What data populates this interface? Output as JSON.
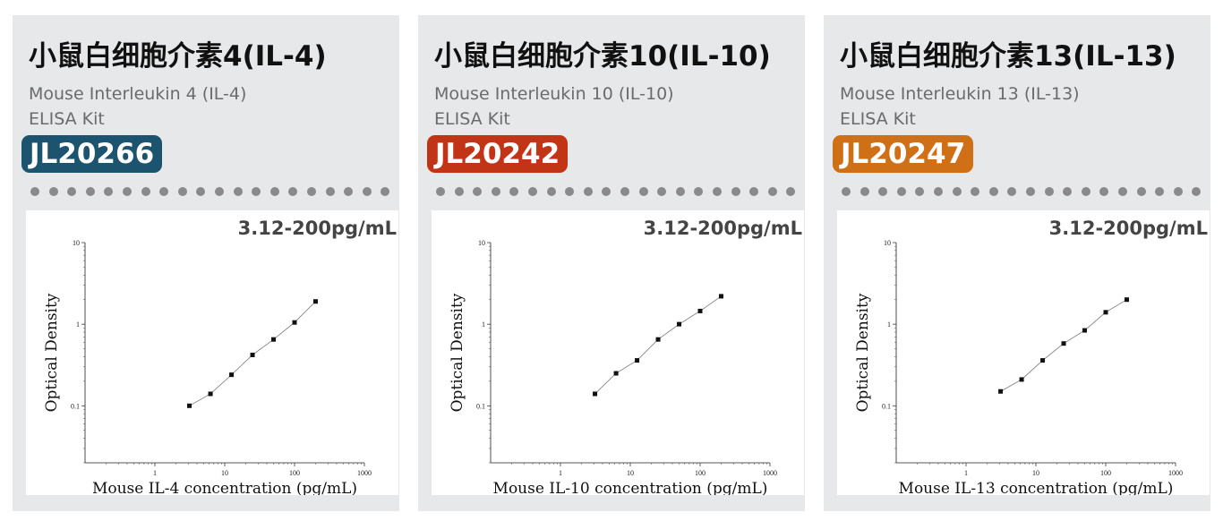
{
  "cards": [
    {
      "title": "小鼠白细胞介素4(IL-4)",
      "subtitle_line1": "Mouse Interleukin 4 (IL-4)",
      "subtitle_line2": "ELISA Kit",
      "code": "JL20266",
      "code_color": "#1c5470",
      "range": "3.12-200pg/mL"
    },
    {
      "title": "小鼠白细胞介素10(IL-10)",
      "subtitle_line1": "Mouse Interleukin 10 (IL-10)",
      "subtitle_line2": "ELISA Kit",
      "code": "JL20242",
      "code_color": "#c23416",
      "range": "3.12-200pg/mL"
    },
    {
      "title": "小鼠白细胞介素13(IL-13)",
      "subtitle_line1": "Mouse Interleukin 13 (IL-13)",
      "subtitle_line2": "ELISA Kit",
      "code": "JL20247",
      "code_color": "#cf6f16",
      "range": "3.12-200pg/mL"
    }
  ],
  "chart_data": [
    {
      "type": "scatter",
      "xlabel": "Mouse IL-4 concentration (pg/mL)",
      "ylabel": "Optical Density",
      "x_scale": "log",
      "y_scale": "log",
      "xlim": [
        0.1,
        1000
      ],
      "ylim": [
        0.02,
        10
      ],
      "x_ticks": [
        "1",
        "10",
        "100",
        "1000"
      ],
      "y_ticks": [
        "0.1",
        "1",
        "10"
      ],
      "x": [
        3.12,
        6.25,
        12.5,
        25,
        50,
        100,
        200
      ],
      "y": [
        0.1,
        0.14,
        0.24,
        0.42,
        0.65,
        1.05,
        1.9
      ],
      "fit_line": true,
      "grid": false
    },
    {
      "type": "scatter",
      "xlabel": "Mouse IL-10 concentration (pg/mL)",
      "ylabel": "Optical Density",
      "x_scale": "log",
      "y_scale": "log",
      "xlim": [
        0.1,
        1000
      ],
      "ylim": [
        0.02,
        10
      ],
      "x_ticks": [
        "1",
        "10",
        "100",
        "1000"
      ],
      "y_ticks": [
        "0.1",
        "1",
        "10"
      ],
      "x": [
        3.12,
        6.25,
        12.5,
        25,
        50,
        100,
        200
      ],
      "y": [
        0.14,
        0.25,
        0.36,
        0.65,
        1.0,
        1.45,
        2.2
      ],
      "fit_line": true,
      "grid": false
    },
    {
      "type": "scatter",
      "xlabel": "Mouse IL-13 concentration (pg/mL)",
      "ylabel": "Optical Density",
      "x_scale": "log",
      "y_scale": "log",
      "xlim": [
        0.1,
        1000
      ],
      "ylim": [
        0.02,
        10
      ],
      "x_ticks": [
        "1",
        "10",
        "100",
        "1000"
      ],
      "y_ticks": [
        "0.1",
        "1",
        "10"
      ],
      "x": [
        3.12,
        6.25,
        12.5,
        25,
        50,
        100,
        200
      ],
      "y": [
        0.15,
        0.21,
        0.36,
        0.58,
        0.84,
        1.4,
        2.0
      ],
      "fit_line": true,
      "grid": false
    }
  ]
}
